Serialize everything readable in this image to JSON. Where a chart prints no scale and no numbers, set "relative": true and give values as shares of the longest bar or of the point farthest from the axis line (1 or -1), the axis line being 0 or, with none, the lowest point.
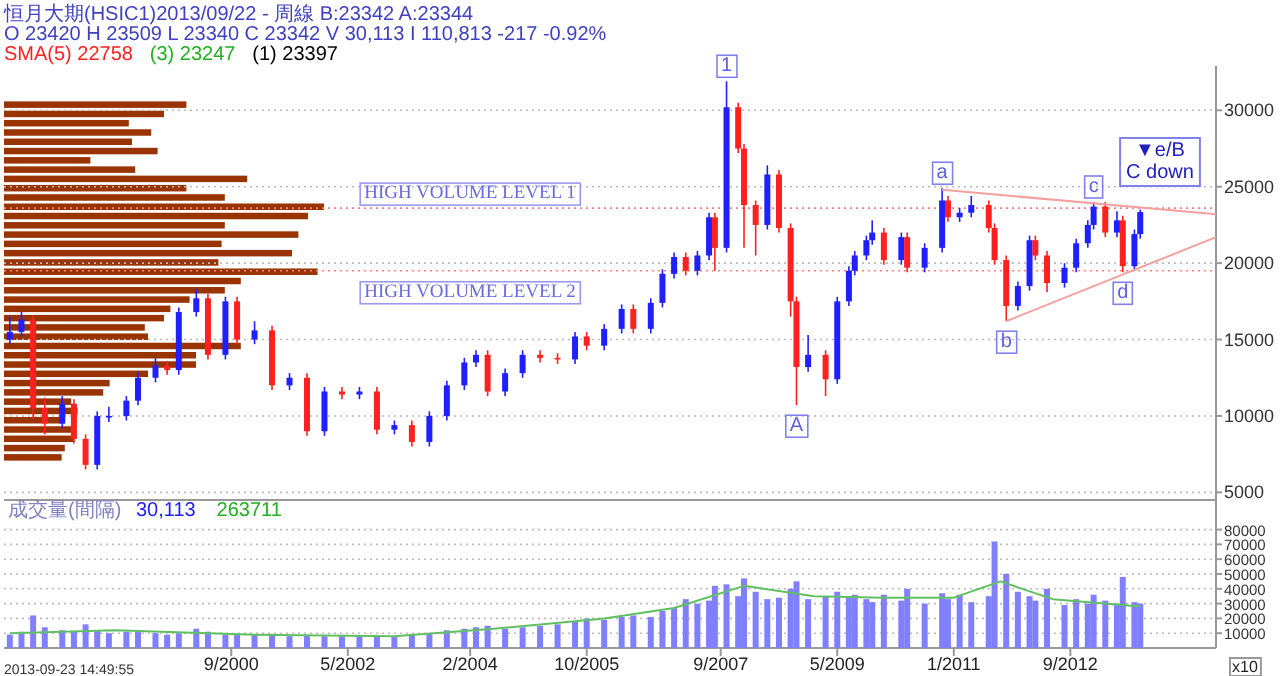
{
  "chart_data": [
    {
      "type": "candlestick",
      "title": "恒月大期(HSIC1)2013/09/22  - 周線 B:23342 A:23344",
      "subtitle": "O 23420 H 23509 L 23340 C 23342 V 30,113 I 110,813  -217  -0.92%",
      "x": [
        "1997-07",
        "1997-09",
        "1997-11",
        "1998-01",
        "1998-04",
        "1998-06",
        "1998-08",
        "1998-10",
        "1998-12",
        "1999-03",
        "1999-05",
        "1999-08",
        "1999-10",
        "1999-12",
        "2000-03",
        "2000-05",
        "2000-08",
        "2000-10",
        "2001-01",
        "2001-04",
        "2001-07",
        "2001-10",
        "2002-01",
        "2002-04",
        "2002-07",
        "2002-10",
        "2003-01",
        "2003-04",
        "2003-07",
        "2003-10",
        "2004-01",
        "2004-03",
        "2004-05",
        "2004-08",
        "2004-11",
        "2005-02",
        "2005-05",
        "2005-08",
        "2005-10",
        "2006-01",
        "2006-04",
        "2006-06",
        "2006-09",
        "2006-11",
        "2007-01",
        "2007-03",
        "2007-05",
        "2007-07",
        "2007-08",
        "2007-10",
        "2007-12",
        "2008-01",
        "2008-03",
        "2008-05",
        "2008-07",
        "2008-09",
        "2008-10",
        "2008-12",
        "2009-03",
        "2009-05",
        "2009-07",
        "2009-08",
        "2009-10",
        "2009-11",
        "2010-01",
        "2010-04",
        "2010-05",
        "2010-08",
        "2010-11",
        "2010-12",
        "2011-02",
        "2011-04",
        "2011-07",
        "2011-08",
        "2011-10",
        "2011-12",
        "2012-02",
        "2012-03",
        "2012-05",
        "2012-08",
        "2012-10",
        "2012-12",
        "2013-01",
        "2013-03",
        "2013-05",
        "2013-06",
        "2013-08",
        "2013-09"
      ],
      "ohlc": [
        [
          15000,
          16500,
          14700,
          15500
        ],
        [
          15500,
          16800,
          15200,
          16300
        ],
        [
          16300,
          16600,
          9800,
          10500
        ],
        [
          10500,
          11200,
          8800,
          9500
        ],
        [
          9500,
          11300,
          9200,
          10800
        ],
        [
          10800,
          11100,
          8200,
          8500
        ],
        [
          8500,
          8800,
          6500,
          6800
        ],
        [
          6800,
          10300,
          6500,
          10000
        ],
        [
          10000,
          10600,
          9600,
          10000
        ],
        [
          10000,
          11300,
          9700,
          11000
        ],
        [
          11000,
          12900,
          10700,
          12500
        ],
        [
          12500,
          13800,
          12200,
          13300
        ],
        [
          13300,
          13600,
          12700,
          13000
        ],
        [
          13000,
          17100,
          12700,
          16800
        ],
        [
          16800,
          18300,
          16500,
          17700
        ],
        [
          17700,
          18000,
          13700,
          14000
        ],
        [
          14000,
          17800,
          13700,
          17500
        ],
        [
          17500,
          17800,
          14700,
          15000
        ],
        [
          15000,
          16200,
          14700,
          15600
        ],
        [
          15600,
          15900,
          11700,
          12000
        ],
        [
          12000,
          12800,
          11700,
          12500
        ],
        [
          12500,
          12800,
          8700,
          9000
        ],
        [
          9000,
          11900,
          8700,
          11600
        ],
        [
          11600,
          11900,
          11100,
          11400
        ],
        [
          11400,
          11900,
          11100,
          11600
        ],
        [
          11600,
          11900,
          8800,
          9100
        ],
        [
          9100,
          9700,
          8800,
          9400
        ],
        [
          9400,
          9700,
          8000,
          8300
        ],
        [
          8300,
          10300,
          8000,
          10000
        ],
        [
          10000,
          12300,
          9700,
          12000
        ],
        [
          12000,
          13800,
          11700,
          13500
        ],
        [
          13500,
          14300,
          13200,
          14000
        ],
        [
          14000,
          14300,
          11300,
          11600
        ],
        [
          11600,
          13100,
          11300,
          12800
        ],
        [
          12800,
          14300,
          12500,
          14000
        ],
        [
          14000,
          14300,
          13500,
          13800
        ],
        [
          13800,
          14100,
          13400,
          13700
        ],
        [
          13700,
          15500,
          13400,
          15200
        ],
        [
          15200,
          15500,
          14300,
          14600
        ],
        [
          14600,
          16000,
          14300,
          15700
        ],
        [
          15700,
          17300,
          15400,
          17000
        ],
        [
          17000,
          17300,
          15400,
          15700
        ],
        [
          15700,
          17700,
          15400,
          17400
        ],
        [
          17400,
          19600,
          17100,
          19300
        ],
        [
          19300,
          20700,
          19000,
          20400
        ],
        [
          20400,
          20700,
          19200,
          19500
        ],
        [
          19500,
          20800,
          19200,
          20500
        ],
        [
          20500,
          23300,
          20200,
          23000
        ],
        [
          23000,
          23300,
          19500,
          21000
        ],
        [
          21000,
          31900,
          20700,
          30200
        ],
        [
          30200,
          30500,
          27200,
          27500
        ],
        [
          27500,
          27800,
          21000,
          23800
        ],
        [
          23800,
          24100,
          20500,
          22500
        ],
        [
          22500,
          26400,
          22200,
          25800
        ],
        [
          25800,
          26100,
          22000,
          22300
        ],
        [
          22300,
          22600,
          16500,
          17500
        ],
        [
          17500,
          17800,
          10700,
          13200
        ],
        [
          13200,
          15300,
          12900,
          14000
        ],
        [
          14000,
          14300,
          11300,
          12400
        ],
        [
          12400,
          17800,
          12100,
          17500
        ],
        [
          17500,
          19800,
          17200,
          19500
        ],
        [
          19500,
          20800,
          19200,
          20500
        ],
        [
          20500,
          21800,
          20200,
          21500
        ],
        [
          21500,
          22800,
          21200,
          22000
        ],
        [
          22000,
          22300,
          19900,
          20200
        ],
        [
          20200,
          22000,
          19900,
          21700
        ],
        [
          21700,
          22000,
          19400,
          19700
        ],
        [
          19700,
          21300,
          19400,
          21000
        ],
        [
          21000,
          24900,
          20700,
          24100
        ],
        [
          24100,
          24400,
          22700,
          23000
        ],
        [
          23000,
          23600,
          22700,
          23300
        ],
        [
          23300,
          24400,
          23000,
          23800
        ],
        [
          23800,
          24100,
          22000,
          22300
        ],
        [
          22300,
          22600,
          19900,
          20200
        ],
        [
          20200,
          20500,
          16200,
          17200
        ],
        [
          17200,
          18800,
          16900,
          18500
        ],
        [
          18500,
          21800,
          18200,
          21500
        ],
        [
          21500,
          21800,
          20200,
          20500
        ],
        [
          20500,
          20800,
          18100,
          18700
        ],
        [
          18700,
          20000,
          18400,
          19700
        ],
        [
          19700,
          21600,
          19400,
          21300
        ],
        [
          21300,
          22800,
          21000,
          22500
        ],
        [
          22500,
          24000,
          22200,
          23700
        ],
        [
          23700,
          24000,
          21700,
          22000
        ],
        [
          22000,
          23400,
          21700,
          22800
        ],
        [
          22800,
          23100,
          19400,
          19800
        ],
        [
          19800,
          22200,
          19500,
          21900
        ],
        [
          21900,
          23509,
          21600,
          23342
        ]
      ],
      "series": [
        {
          "type": "line",
          "color": "#f4a0a0",
          "x": [
            "2010-11",
            "2014-10"
          ],
          "values": [
            24800,
            23200
          ]
        },
        {
          "type": "line",
          "color": "#f4a0a0",
          "x": [
            "2011-10",
            "2014-10"
          ],
          "values": [
            16200,
            21700
          ]
        }
      ],
      "xlim": [
        "1997-06",
        "2014-10"
      ],
      "ylim": [
        4500,
        32900
      ],
      "yticks": [
        5000,
        10000,
        15000,
        20000,
        25000,
        30000
      ],
      "tick_labels": "y",
      "grid": "y",
      "ref_lines": [
        {
          "axis": "y",
          "value": 23600,
          "label": "HIGH VOLUME LEVEL 1",
          "color": "#ff8080",
          "line_style": "dotted"
        },
        {
          "axis": "y",
          "value": 19500,
          "label": "HIGH VOLUME LEVEL 2",
          "color": "#ff8080",
          "line_style": "dotted"
        }
      ],
      "annotations": [
        "SMA(5) 22758",
        "(3) 23247",
        "(1) 23397",
        "▼e/B",
        "C down",
        {
          "text": "1",
          "x": "2007-10",
          "y": 31900
        },
        {
          "text": "A",
          "x": "2008-10",
          "y": 10700
        },
        {
          "text": "a",
          "x": "2010-11",
          "y": 24900
        },
        {
          "text": "b",
          "x": "2011-10",
          "y": 16200
        },
        {
          "text": "c",
          "x": "2013-01",
          "y": 24000
        },
        {
          "text": "d",
          "x": "2013-06",
          "y": 19400
        }
      ]
    },
    {
      "type": "bar",
      "title": "成交量(間隔)",
      "ylabel": "x10",
      "x": [
        "1997-07",
        "1997-09",
        "1997-11",
        "1998-01",
        "1998-04",
        "1998-06",
        "1998-08",
        "1998-10",
        "1998-12",
        "1999-03",
        "1999-05",
        "1999-08",
        "1999-10",
        "1999-12",
        "2000-03",
        "2000-05",
        "2000-08",
        "2000-10",
        "2001-01",
        "2001-04",
        "2001-07",
        "2001-10",
        "2002-01",
        "2002-04",
        "2002-07",
        "2002-10",
        "2003-01",
        "2003-04",
        "2003-07",
        "2003-10",
        "2004-01",
        "2004-03",
        "2004-05",
        "2004-08",
        "2004-11",
        "2005-02",
        "2005-05",
        "2005-08",
        "2005-10",
        "2006-01",
        "2006-04",
        "2006-06",
        "2006-09",
        "2006-11",
        "2007-01",
        "2007-03",
        "2007-05",
        "2007-07",
        "2007-08",
        "2007-10",
        "2007-12",
        "2008-01",
        "2008-03",
        "2008-05",
        "2008-07",
        "2008-09",
        "2008-10",
        "2008-12",
        "2009-03",
        "2009-05",
        "2009-07",
        "2009-08",
        "2009-10",
        "2009-11",
        "2010-01",
        "2010-04",
        "2010-05",
        "2010-08",
        "2010-11",
        "2010-12",
        "2011-02",
        "2011-04",
        "2011-07",
        "2011-08",
        "2011-10",
        "2011-12",
        "2012-02",
        "2012-03",
        "2012-05",
        "2012-08",
        "2012-10",
        "2012-12",
        "2013-01",
        "2013-03",
        "2013-05",
        "2013-06",
        "2013-08",
        "2013-09"
      ],
      "series": [
        {
          "type": "bar",
          "color": "#8080ff",
          "values": [
            9000,
            11000,
            22000,
            14000,
            12000,
            11000,
            16000,
            12000,
            10000,
            11000,
            12000,
            10000,
            9000,
            10000,
            13000,
            11000,
            9000,
            9000,
            9000,
            9000,
            8000,
            9000,
            8000,
            8000,
            8000,
            8000,
            8000,
            9000,
            10000,
            12000,
            13000,
            14000,
            15000,
            13000,
            14000,
            15000,
            16000,
            18000,
            20000,
            19000,
            21000,
            22000,
            21000,
            25000,
            27000,
            33000,
            30000,
            32000,
            42000,
            43000,
            35000,
            47000,
            38000,
            33000,
            34000,
            40000,
            45000,
            33000,
            35000,
            38000,
            34000,
            36000,
            33000,
            31000,
            36000,
            32000,
            40000,
            30000,
            37000,
            33000,
            36000,
            31000,
            35000,
            72000,
            50000,
            38000,
            35000,
            32000,
            40000,
            29000,
            33000,
            30000,
            36000,
            32000,
            30000,
            48000,
            31000,
            30000
          ]
        },
        {
          "type": "line",
          "color": "#60c060",
          "x": [
            "1997-07",
            "1999-01",
            "2001-01",
            "2003-01",
            "2004-06",
            "2006-01",
            "2007-01",
            "2008-01",
            "2009-01",
            "2010-01",
            "2011-01",
            "2011-09",
            "2012-06",
            "2013-09"
          ],
          "values": [
            10000,
            12000,
            9000,
            8000,
            13000,
            20000,
            27000,
            42000,
            35000,
            34000,
            34000,
            45000,
            33000,
            28000
          ]
        }
      ],
      "xlim": [
        "1997-06",
        "2014-10"
      ],
      "ylim": [
        0,
        100000
      ],
      "yticks": [
        10000,
        20000,
        30000,
        40000,
        50000,
        60000,
        70000,
        80000
      ],
      "xticks": [
        {
          "value": "2000-09",
          "label": "9/2000"
        },
        {
          "value": "2002-05",
          "label": "5/2002"
        },
        {
          "value": "2004-02",
          "label": "2/2004"
        },
        {
          "value": "2005-10",
          "label": "10/2005"
        },
        {
          "value": "2007-09",
          "label": "9/2007"
        },
        {
          "value": "2009-05",
          "label": "5/2009"
        },
        {
          "value": "2011-01",
          "label": "1/2011"
        },
        {
          "value": "2012-09",
          "label": "9/2012"
        }
      ],
      "grid": "y",
      "annotations": [
        "30,113",
        "263711",
        "2013-09-23 14:49:55"
      ]
    },
    {
      "type": "bar",
      "orientation": "horizontal",
      "relative": true,
      "color": "#993300",
      "categories": [
        null,
        null,
        null,
        null,
        null,
        null,
        null,
        null,
        null,
        null,
        null,
        null,
        null,
        null,
        null,
        null,
        null,
        null,
        null,
        null,
        null,
        null,
        null,
        null,
        null,
        null,
        null,
        null,
        null,
        null,
        null,
        null,
        null,
        null,
        null,
        null,
        null,
        null,
        null
      ],
      "values": [
        0.57,
        0.5,
        0.39,
        0.46,
        0.4,
        0.48,
        0.27,
        0.41,
        0.76,
        0.57,
        0.69,
        1,
        0.95,
        0.69,
        0.92,
        0.68,
        0.9,
        0.67,
        0.98,
        0.74,
        0.69,
        0.58,
        0.52,
        0.5,
        0.44,
        0.45,
        0.74,
        0.6,
        0.6,
        0.45,
        0.33,
        0.31,
        0.21,
        0.23,
        0.19,
        0.21,
        0.22,
        0.19,
        0.18
      ]
    }
  ]
}
